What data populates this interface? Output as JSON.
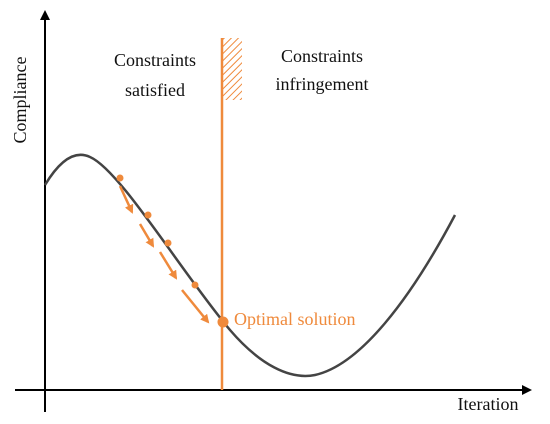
{
  "axes": {
    "y_label": "Compliance",
    "x_label": "Iteration"
  },
  "regions": [
    {
      "lines": [
        "Constraints",
        "satisfied"
      ]
    },
    {
      "lines": [
        "Constraints",
        "infringement"
      ]
    }
  ],
  "annotation": "Optimal solution"
}
